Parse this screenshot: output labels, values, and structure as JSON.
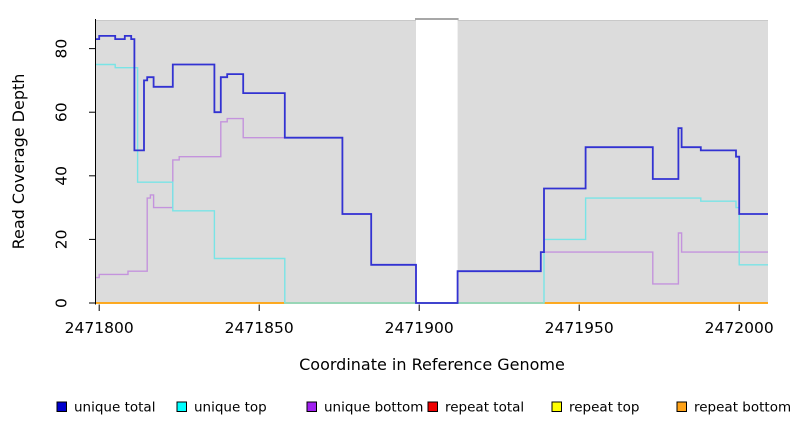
{
  "chart_data": {
    "type": "line",
    "subtype": "step",
    "title": "",
    "xlabel": "Coordinate in Reference Genome",
    "ylabel": "Read Coverage Depth",
    "xlim": [
      2471799,
      2472009
    ],
    "ylim": [
      0,
      89
    ],
    "x_ticks": [
      2471800,
      2471850,
      2471900,
      2471950,
      2472000
    ],
    "y_ticks": [
      0,
      20,
      40,
      60,
      80
    ],
    "grid": false,
    "legend_position": "bottom",
    "plot_background": "#DCDCDC",
    "masked_region": [
      2471899,
      2471912
    ],
    "masked_region_color": "#FFFFFF",
    "series": [
      {
        "name": "unique total",
        "line_color": "#3232D2",
        "swatch_color": "#0000CD",
        "line_width": 1.8,
        "steps": [
          [
            2471799,
            83
          ],
          [
            2471800,
            84
          ],
          [
            2471805,
            83
          ],
          [
            2471808,
            84
          ],
          [
            2471810,
            83
          ],
          [
            2471811,
            48
          ],
          [
            2471814,
            70
          ],
          [
            2471815,
            71
          ],
          [
            2471817,
            68
          ],
          [
            2471823,
            75
          ],
          [
            2471836,
            60
          ],
          [
            2471838,
            71
          ],
          [
            2471840,
            72
          ],
          [
            2471845,
            66
          ],
          [
            2471858,
            52
          ],
          [
            2471876,
            28
          ],
          [
            2471885,
            12
          ],
          [
            2471899,
            0
          ],
          [
            2471912,
            10
          ],
          [
            2471938,
            16
          ],
          [
            2471939,
            36
          ],
          [
            2471952,
            49
          ],
          [
            2471973,
            39
          ],
          [
            2471981,
            55
          ],
          [
            2471982,
            49
          ],
          [
            2471988,
            48
          ],
          [
            2471999,
            46
          ],
          [
            2472000,
            28
          ]
        ]
      },
      {
        "name": "unique top",
        "line_color": "#79E4E6",
        "swatch_color": "#00FFFF",
        "line_width": 1.4,
        "steps": [
          [
            2471799,
            75
          ],
          [
            2471805,
            74
          ],
          [
            2471812,
            38
          ],
          [
            2471823,
            29
          ],
          [
            2471836,
            14
          ],
          [
            2471858,
            0
          ],
          [
            2471939,
            20
          ],
          [
            2471952,
            33
          ],
          [
            2471988,
            32
          ],
          [
            2471999,
            30
          ],
          [
            2472000,
            12
          ]
        ]
      },
      {
        "name": "unique bottom",
        "line_color": "#C493DD",
        "swatch_color": "#A020F0",
        "line_width": 1.4,
        "steps": [
          [
            2471799,
            8
          ],
          [
            2471800,
            9
          ],
          [
            2471809,
            10
          ],
          [
            2471815,
            33
          ],
          [
            2471816,
            34
          ],
          [
            2471817,
            30
          ],
          [
            2471823,
            45
          ],
          [
            2471825,
            46
          ],
          [
            2471838,
            57
          ],
          [
            2471840,
            58
          ],
          [
            2471845,
            52
          ],
          [
            2471876,
            28
          ],
          [
            2471885,
            12
          ],
          [
            2471899,
            0
          ],
          [
            2471912,
            10
          ],
          [
            2471938,
            16
          ],
          [
            2471973,
            6
          ],
          [
            2471981,
            22
          ],
          [
            2471982,
            16
          ]
        ]
      },
      {
        "name": "repeat total",
        "line_color": "#DD0000",
        "swatch_color": "#EE0000",
        "line_width": 1.4,
        "steps": [
          [
            2471799,
            0
          ]
        ]
      },
      {
        "name": "repeat top",
        "line_color": "#FFFF00",
        "swatch_color": "#FFFF00",
        "line_width": 1.4,
        "steps": [
          [
            2471799,
            0
          ]
        ]
      },
      {
        "name": "repeat bottom",
        "line_color": "#FFA319",
        "swatch_color": "#FFA319",
        "line_width": 1.6,
        "steps": [
          [
            2471799,
            0
          ]
        ]
      }
    ]
  }
}
